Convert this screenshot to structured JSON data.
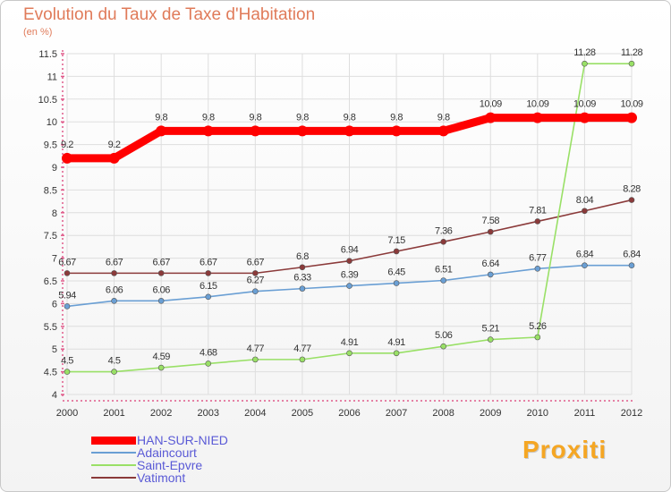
{
  "page": {
    "title": "Evolution du Taux de Taxe d'Habitation",
    "subtitle": "(en %)",
    "logo_text": "Proxiti"
  },
  "chart_data": {
    "type": "line",
    "title": "Evolution du Taux de Taxe d'Habitation",
    "subtitle": "(en %)",
    "x": [
      2000,
      2001,
      2002,
      2003,
      2004,
      2005,
      2006,
      2007,
      2008,
      2009,
      2010,
      2011,
      2012
    ],
    "ylim": [
      4,
      11.5
    ],
    "yticks": [
      4,
      4.5,
      5,
      5.5,
      6,
      6.5,
      7,
      7.5,
      8,
      8.5,
      9,
      9.5,
      10,
      10.5,
      11,
      11.5
    ],
    "grid": true,
    "legend": "bottom-left",
    "series": [
      {
        "name": "HAN-SUR-NIED",
        "color": "#ff0000",
        "values": [
          9.2,
          9.2,
          9.8,
          9.8,
          9.8,
          9.8,
          9.8,
          9.8,
          9.8,
          10.09,
          10.09,
          10.09,
          10.09
        ],
        "labels": [
          "9.2",
          "9.2",
          "9.8",
          "9.8",
          "9.8",
          "9.8",
          "9.8",
          "9.8",
          "9.8",
          "10.09",
          "10.09",
          "10.09",
          "10.09"
        ]
      },
      {
        "name": "Adaincourt",
        "color": "#6a9fd4",
        "values": [
          5.94,
          6.06,
          6.06,
          6.15,
          6.27,
          6.33,
          6.39,
          6.45,
          6.51,
          6.64,
          6.77,
          6.84,
          6.84
        ],
        "labels": [
          "5.94",
          "6.06",
          "6.06",
          "6.15",
          "6.27",
          "6.33",
          "6.39",
          "6.45",
          "6.51",
          "6.64",
          "6.77",
          "6.84",
          "6.84"
        ]
      },
      {
        "name": "Saint-Epvre",
        "color": "#99e066",
        "values": [
          4.5,
          4.5,
          4.59,
          4.68,
          4.77,
          4.77,
          4.91,
          4.91,
          5.06,
          5.21,
          5.26,
          11.28,
          11.28
        ],
        "labels": [
          "4.5",
          "4.5",
          "4.59",
          "4.68",
          "4.77",
          "4.77",
          "4.91",
          "4.91",
          "5.06",
          "5.21",
          "5.26",
          "11.28",
          "11.28"
        ]
      },
      {
        "name": "Vatimont",
        "color": "#8b3a3a",
        "values": [
          6.67,
          6.67,
          6.67,
          6.67,
          6.67,
          6.8,
          6.94,
          7.15,
          7.36,
          7.58,
          7.81,
          8.04,
          8.28
        ],
        "labels": [
          "6.67",
          "6.67",
          "6.67",
          "6.67",
          "6.67",
          "6.8",
          "6.94",
          "7.15",
          "7.36",
          "7.58",
          "7.81",
          "8.04",
          "8.28"
        ]
      }
    ]
  }
}
